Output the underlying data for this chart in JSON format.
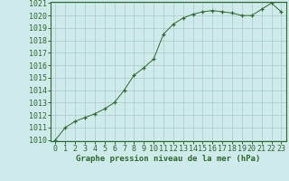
{
  "x": [
    0,
    1,
    2,
    3,
    4,
    5,
    6,
    7,
    8,
    9,
    10,
    11,
    12,
    13,
    14,
    15,
    16,
    17,
    18,
    19,
    20,
    21,
    22,
    23
  ],
  "y": [
    1010.0,
    1011.0,
    1011.5,
    1011.8,
    1012.1,
    1012.5,
    1013.0,
    1014.0,
    1015.2,
    1015.8,
    1016.5,
    1018.5,
    1019.3,
    1019.8,
    1020.1,
    1020.3,
    1020.4,
    1020.3,
    1020.2,
    1020.0,
    1020.0,
    1020.5,
    1021.0,
    1020.3
  ],
  "line_color": "#2d6a2d",
  "marker": "+",
  "bg_color": "#ceeaea",
  "grid_color": "#aacaca",
  "xlabel": "Graphe pression niveau de la mer (hPa)",
  "ylim": [
    1010,
    1021
  ],
  "xlim": [
    -0.5,
    23.5
  ],
  "yticks": [
    1010,
    1011,
    1012,
    1013,
    1014,
    1015,
    1016,
    1017,
    1018,
    1019,
    1020,
    1021
  ],
  "xticks": [
    0,
    1,
    2,
    3,
    4,
    5,
    6,
    7,
    8,
    9,
    10,
    11,
    12,
    13,
    14,
    15,
    16,
    17,
    18,
    19,
    20,
    21,
    22,
    23
  ],
  "axis_color": "#2d6a2d",
  "tick_color": "#2d6a2d",
  "label_color": "#2d6a2d",
  "label_fontsize": 6.5,
  "tick_fontsize": 6.0
}
